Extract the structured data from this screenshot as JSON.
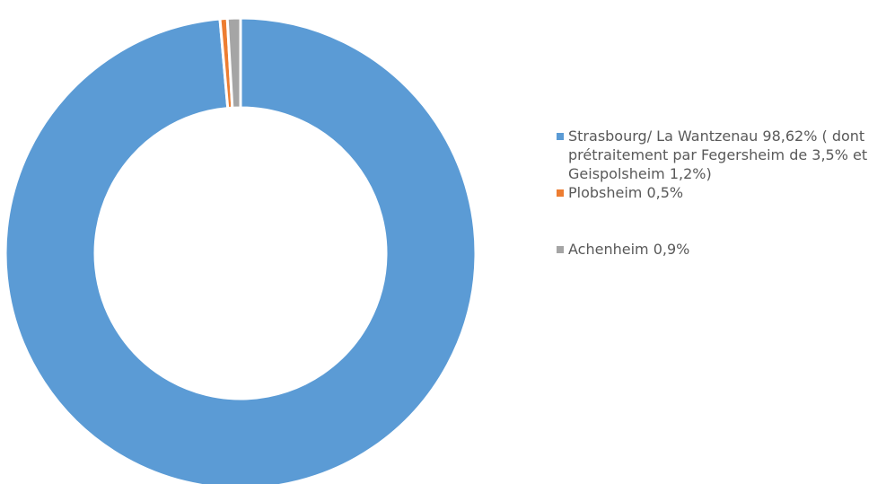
{
  "chart_data": {
    "type": "pie",
    "variant": "donut",
    "title": "",
    "series": [
      {
        "values": [
          98.62,
          0.5,
          0.9
        ],
        "categories": [
          "Strasbourg/ La Wantzenau 98,62% ( dont prétraitement par Fegersheim de 3,5% et Geispolsheim 1,2%)",
          "Plobsheim 0,5%",
          "Achenheim 0,9%"
        ],
        "colors": [
          "#5B9BD5",
          "#ED7D31",
          "#A5A5A5"
        ]
      }
    ],
    "legend": {
      "position": "right",
      "entries": [
        {
          "label": "Strasbourg/ La Wantzenau 98,62% ( dont prétraitement par Fegersheim de 3,5% et Geispolsheim 1,2%)",
          "color": "#5B9BD5"
        },
        {
          "label": "Plobsheim 0,5%",
          "color": "#ED7D31"
        },
        {
          "label": "Achenheim 0,9%",
          "color": "#A5A5A5"
        }
      ]
    }
  }
}
